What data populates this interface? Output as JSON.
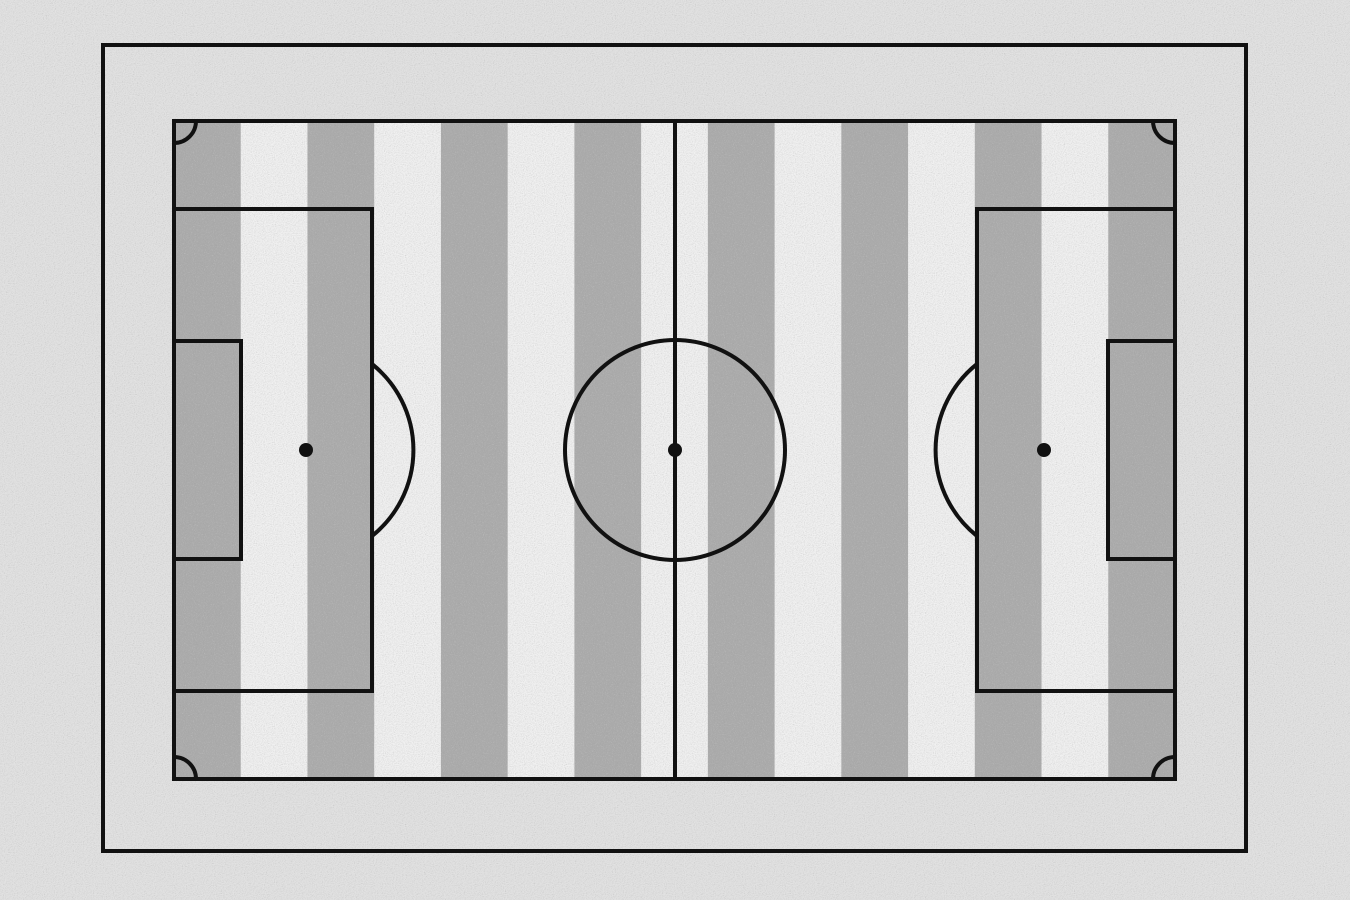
{
  "diagram": {
    "subject": "soccer-pitch",
    "orientation": "horizontal",
    "stripe_count": 15,
    "colors": {
      "background": "#e2e2e2",
      "stripe_light": "#f1f1f1",
      "stripe_dark": "#a9a9a9",
      "line": "#111111"
    },
    "noise_texture": true
  }
}
